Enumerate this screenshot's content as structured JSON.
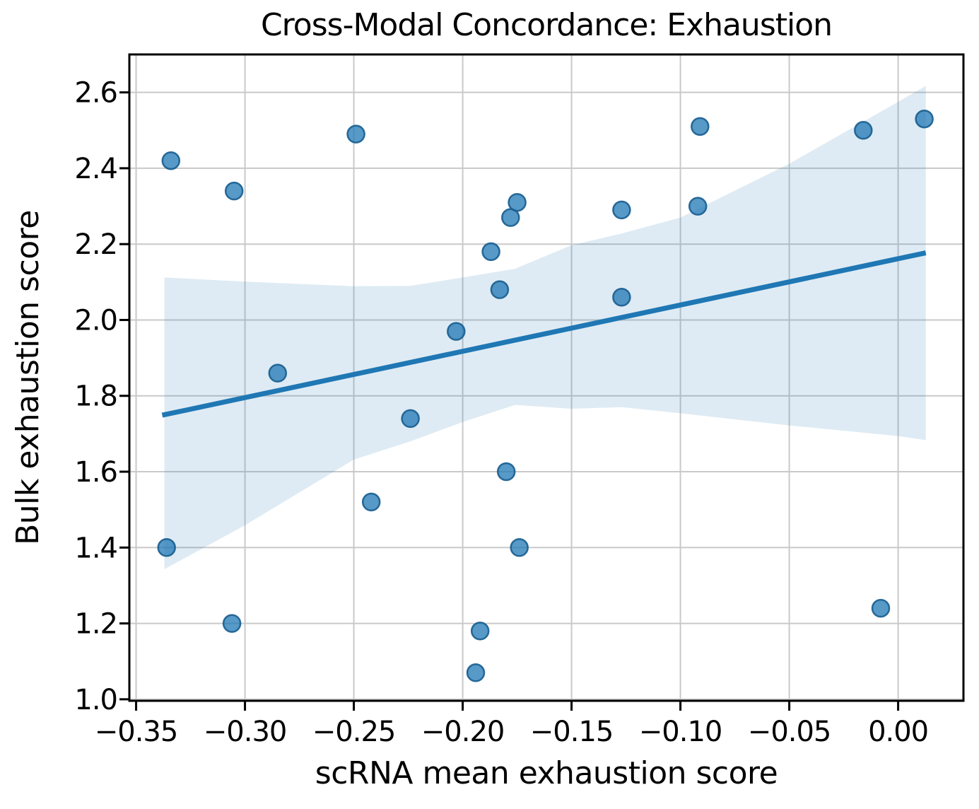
{
  "figure": {
    "background": "#ffffff"
  },
  "chart_data": {
    "type": "scatter",
    "title": "Cross-Modal Concordance: Exhaustion",
    "xlabel": "scRNA mean exhaustion score",
    "ylabel": "Bulk exhaustion score",
    "xlim": [
      -0.3531,
      0.03
    ],
    "ylim": [
      0.996,
      2.7
    ],
    "grid": true,
    "x_ticks": [
      -0.35,
      -0.3,
      -0.25,
      -0.2,
      -0.15,
      -0.1,
      -0.05,
      0.0
    ],
    "x_tick_labels": [
      "−0.35",
      "−0.30",
      "−0.25",
      "−0.20",
      "−0.15",
      "−0.10",
      "−0.05",
      "0.00"
    ],
    "y_ticks": [
      1.0,
      1.2,
      1.4,
      1.6,
      1.8,
      2.0,
      2.2,
      2.4,
      2.6
    ],
    "y_tick_labels": [
      "1.0",
      "1.2",
      "1.4",
      "1.6",
      "1.8",
      "2.0",
      "2.2",
      "2.4",
      "2.6"
    ],
    "points": [
      [
        -0.334,
        2.42
      ],
      [
        -0.305,
        2.34
      ],
      [
        -0.249,
        2.49
      ],
      [
        -0.285,
        1.86
      ],
      [
        -0.224,
        1.74
      ],
      [
        -0.242,
        1.52
      ],
      [
        -0.336,
        1.4
      ],
      [
        -0.306,
        1.2
      ],
      [
        -0.203,
        1.97
      ],
      [
        -0.187,
        2.18
      ],
      [
        -0.183,
        2.08
      ],
      [
        -0.178,
        2.27
      ],
      [
        -0.175,
        2.31
      ],
      [
        -0.18,
        1.6
      ],
      [
        -0.174,
        1.4
      ],
      [
        -0.192,
        1.18
      ],
      [
        -0.194,
        1.07
      ],
      [
        -0.127,
        2.29
      ],
      [
        -0.127,
        2.06
      ],
      [
        -0.091,
        2.51
      ],
      [
        -0.092,
        2.3
      ],
      [
        -0.016,
        2.5
      ],
      [
        0.012,
        2.53
      ],
      [
        -0.008,
        1.24
      ]
    ],
    "regression_line": {
      "x1": -0.338,
      "y1": 1.749,
      "x2": 0.0127,
      "y2": 2.177
    },
    "confidence_band": {
      "x": [
        -0.337,
        -0.3,
        -0.25,
        -0.224,
        -0.2,
        -0.176,
        -0.15,
        -0.127,
        -0.1,
        -0.05,
        0.0,
        0.0127
      ],
      "upper": [
        2.112,
        2.101,
        2.089,
        2.09,
        2.112,
        2.135,
        2.197,
        2.228,
        2.27,
        2.412,
        2.575,
        2.617
      ],
      "lower": [
        1.343,
        1.459,
        1.632,
        1.68,
        1.731,
        1.776,
        1.766,
        1.77,
        1.754,
        1.722,
        1.694,
        1.683
      ]
    },
    "colors": {
      "point_fill": "rgba(31,119,180,0.75)",
      "point_edge": "rgba(23,93,143,0.9)",
      "line": "#1f77b4",
      "band": "rgba(31,119,180,0.15)",
      "grid": "#c9c9c9",
      "spine": "#000000",
      "text": "#000000"
    }
  }
}
